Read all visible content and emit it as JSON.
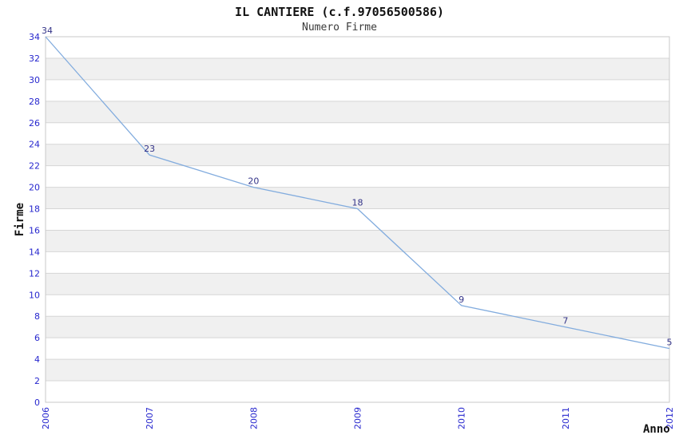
{
  "chart_data": {
    "type": "line",
    "title": "IL CANTIERE (c.f.97056500586)",
    "subtitle": "Numero Firme",
    "xlabel": "Anno",
    "ylabel": "Firme",
    "categories": [
      "2006",
      "2007",
      "2008",
      "2009",
      "2010",
      "2011",
      "2012"
    ],
    "values": [
      34,
      23,
      20,
      18,
      9,
      7,
      5
    ],
    "ylim": [
      0,
      34
    ],
    "ytick_step": 2,
    "grid": "horizontal-gridlines-with-alternating-bands",
    "legend": "none",
    "point_labels_visible": true,
    "x_tick_rotation_deg": -90,
    "colors": {
      "line": "#82ACDE",
      "band": "#F0F0F0",
      "grid": "#D6D6D6",
      "border": "#C9C9C9",
      "tick_label": "#2727CE",
      "data_label": "#333388",
      "title": "#111111",
      "subtitle": "#3A3A3A",
      "axis_title": "#111111"
    }
  }
}
